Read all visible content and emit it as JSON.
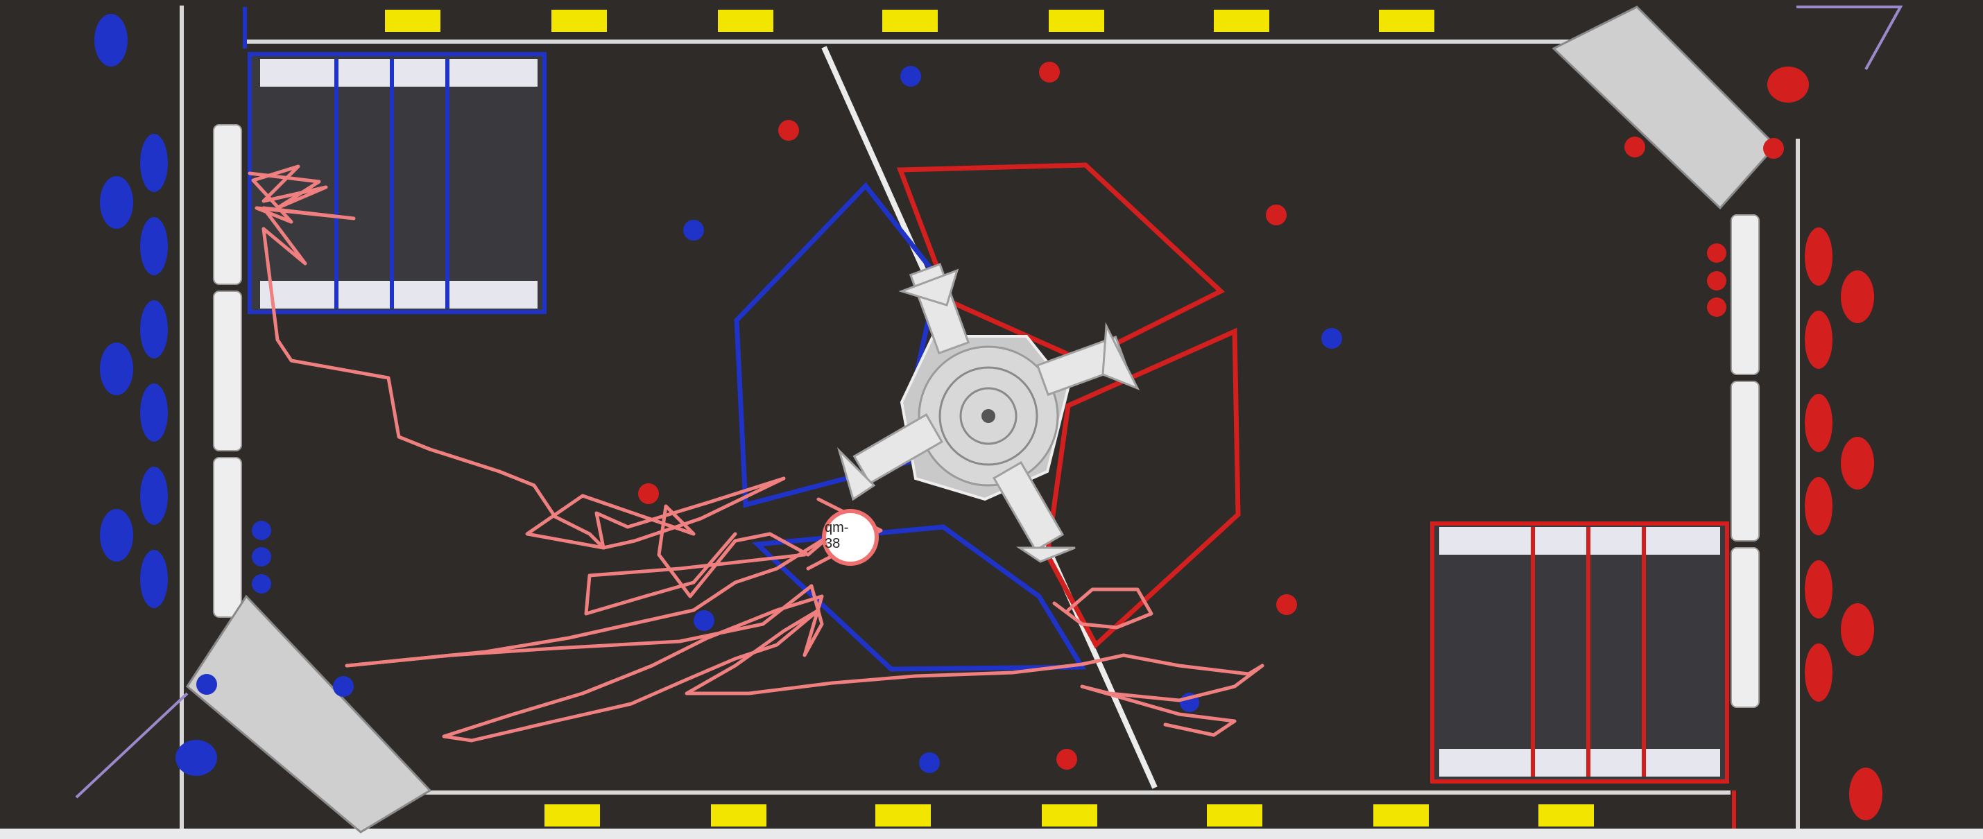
{
  "view": {
    "type": "field-map",
    "background_color": "#e9eaec",
    "carpet_color": "#2e2b28"
  },
  "colors": {
    "blue_alliance": "#1f33c9",
    "red_alliance": "#d41f1f",
    "path": "#f08080",
    "yellow_panel": "#f2e600",
    "rail": "#d9d9d9"
  },
  "path_marker": {
    "label": "qm-38",
    "fill": "#ffffff",
    "stroke": "#f07070"
  },
  "icons": {
    "hub": "hub-icon",
    "blue_robot": "blue-robot-icon",
    "red_robot": "red-robot-icon",
    "hangar": "hangar-icon"
  }
}
